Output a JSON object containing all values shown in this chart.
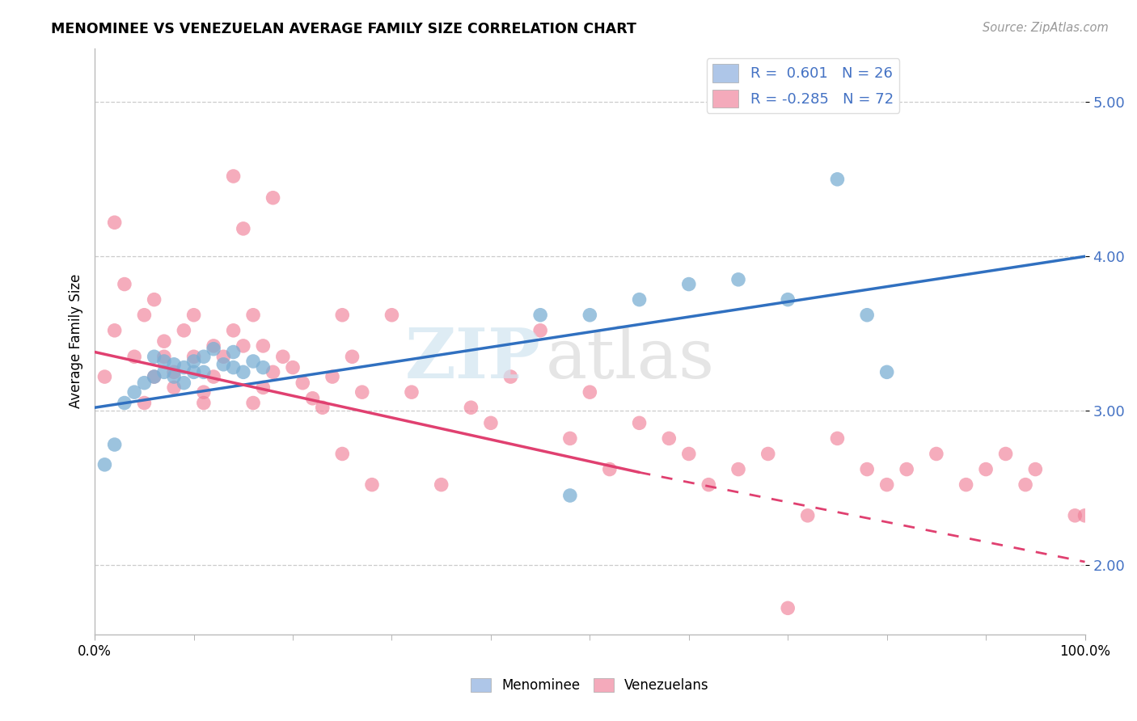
{
  "title": "MENOMINEE VS VENEZUELAN AVERAGE FAMILY SIZE CORRELATION CHART",
  "source": "Source: ZipAtlas.com",
  "ylabel": "Average Family Size",
  "xlim": [
    0.0,
    100.0
  ],
  "ylim": [
    1.55,
    5.35
  ],
  "yticks": [
    2.0,
    3.0,
    4.0,
    5.0
  ],
  "legend_color1": "#aec6e8",
  "legend_color2": "#f4aabb",
  "menominee_color": "#7bafd4",
  "venezuelan_color": "#f08098",
  "blue_line_color": "#3070c0",
  "pink_line_color": "#e04070",
  "grid_color": "#cccccc",
  "background_color": "#ffffff",
  "blue_line_start_y": 3.02,
  "blue_line_end_y": 4.0,
  "pink_line_start_y": 3.38,
  "pink_line_end_solid_x": 55,
  "pink_line_end_solid_y": 2.6,
  "pink_line_end_dash_y": 2.02,
  "menominee_x": [
    1,
    2,
    3,
    4,
    5,
    6,
    6,
    7,
    7,
    8,
    8,
    9,
    9,
    10,
    10,
    11,
    11,
    12,
    13,
    14,
    14,
    15,
    16,
    17,
    45,
    48,
    50,
    55,
    60,
    65,
    70,
    75,
    78,
    80
  ],
  "menominee_y": [
    2.65,
    2.78,
    3.05,
    3.12,
    3.18,
    3.22,
    3.35,
    3.25,
    3.32,
    3.3,
    3.22,
    3.28,
    3.18,
    3.32,
    3.25,
    3.25,
    3.35,
    3.4,
    3.3,
    3.28,
    3.38,
    3.25,
    3.32,
    3.28,
    3.62,
    2.45,
    3.62,
    3.72,
    3.82,
    3.85,
    3.72,
    4.5,
    3.62,
    3.25
  ],
  "venezuelan_x": [
    1,
    2,
    2,
    3,
    4,
    5,
    5,
    6,
    6,
    7,
    7,
    8,
    8,
    9,
    10,
    10,
    11,
    11,
    12,
    12,
    13,
    14,
    14,
    15,
    15,
    16,
    16,
    17,
    17,
    18,
    18,
    19,
    20,
    21,
    22,
    23,
    24,
    25,
    25,
    26,
    27,
    28,
    30,
    32,
    35,
    38,
    40,
    42,
    45,
    48,
    50,
    52,
    55,
    58,
    60,
    62,
    65,
    68,
    70,
    72,
    75,
    78,
    80,
    82,
    85,
    88,
    90,
    92,
    94,
    95,
    99,
    100
  ],
  "venezuelan_y": [
    3.22,
    3.52,
    4.22,
    3.82,
    3.35,
    3.05,
    3.62,
    3.22,
    3.72,
    3.35,
    3.45,
    3.15,
    3.25,
    3.52,
    3.35,
    3.62,
    3.12,
    3.05,
    3.42,
    3.22,
    3.35,
    3.52,
    4.52,
    3.42,
    4.18,
    3.05,
    3.62,
    3.15,
    3.42,
    3.25,
    4.38,
    3.35,
    3.28,
    3.18,
    3.08,
    3.02,
    3.22,
    3.62,
    2.72,
    3.35,
    3.12,
    2.52,
    3.62,
    3.12,
    2.52,
    3.02,
    2.92,
    3.22,
    3.52,
    2.82,
    3.12,
    2.62,
    2.92,
    2.82,
    2.72,
    2.52,
    2.62,
    2.72,
    1.72,
    2.32,
    2.82,
    2.62,
    2.52,
    2.62,
    2.72,
    2.52,
    2.62,
    2.72,
    2.52,
    2.62,
    2.32,
    2.32
  ]
}
